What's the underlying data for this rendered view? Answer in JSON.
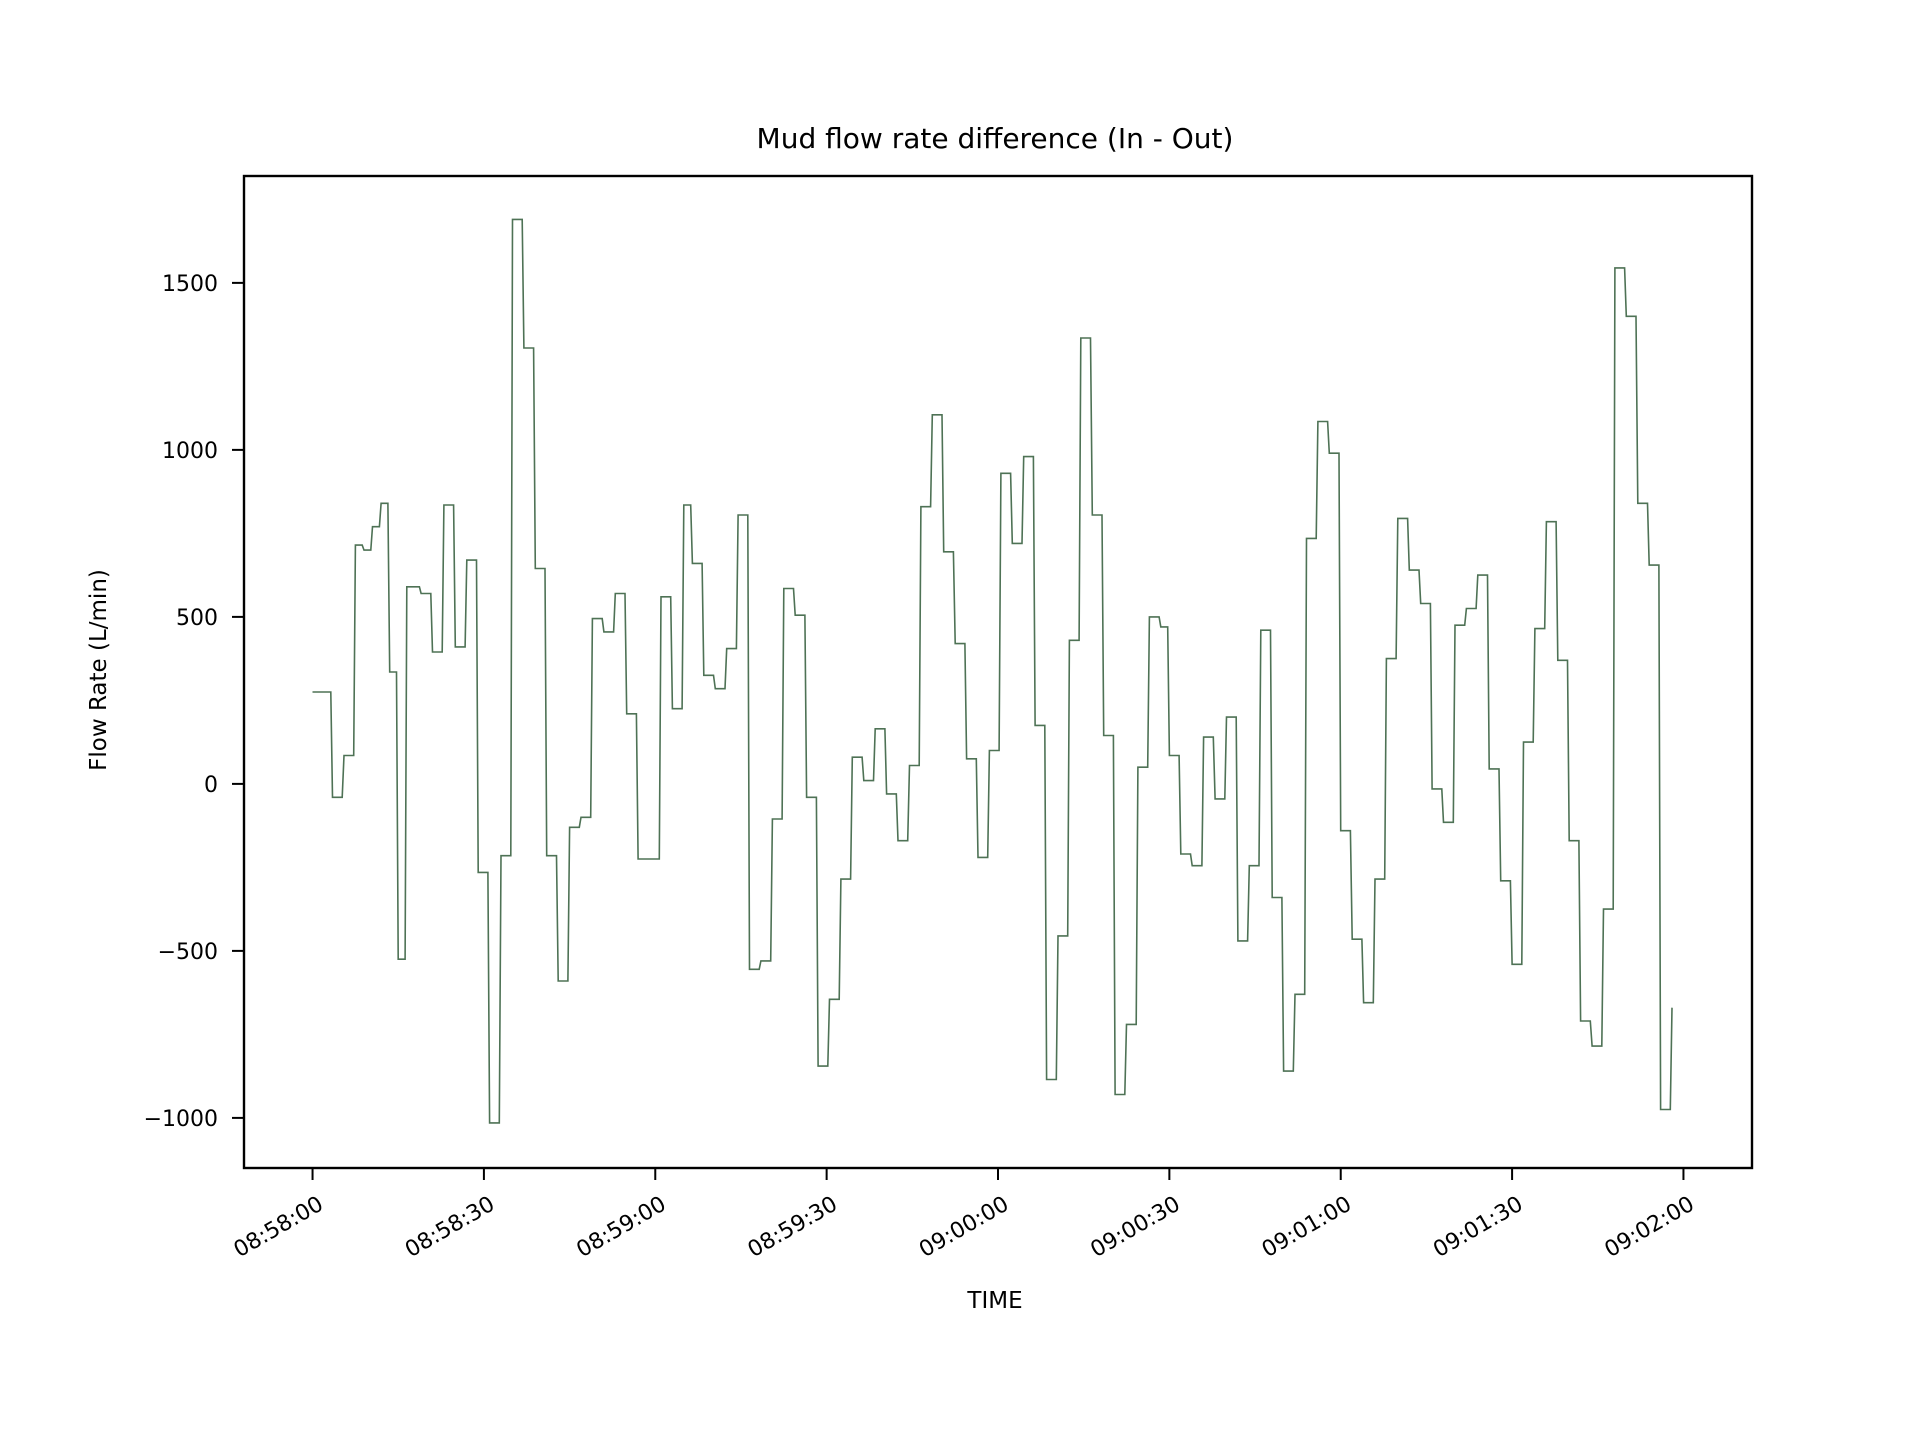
{
  "chart_data": {
    "type": "line",
    "title": "Mud flow rate difference (In - Out)",
    "xlabel": "TIME",
    "ylabel": "Flow Rate (L/min)",
    "x_ticks": [
      "08:58:00",
      "08:58:30",
      "08:59:00",
      "08:59:30",
      "09:00:00",
      "09:00:30",
      "09:01:00",
      "09:01:30",
      "09:02:00"
    ],
    "y_ticks": [
      -1000,
      -500,
      0,
      500,
      1000,
      1500
    ],
    "xlim": [
      "08:57:48",
      "09:02:12"
    ],
    "ylim": [
      -1150,
      1820
    ],
    "grid": false,
    "legend": "none",
    "line_color": "#4e7255",
    "series": [
      {
        "x": [
          "08:58:00",
          "08:58:02.5",
          "08:58:03.5",
          "08:58:05.5",
          "08:58:07.5",
          "08:58:09",
          "08:58:10.5",
          "08:58:12",
          "08:58:13.5",
          "08:58:15",
          "08:58:16.5",
          "08:58:19",
          "08:58:21",
          "08:58:23",
          "08:58:25",
          "08:58:27",
          "08:58:29",
          "08:58:31",
          "08:58:33",
          "08:58:35",
          "08:58:37",
          "08:58:39",
          "08:58:41",
          "08:58:43",
          "08:58:45",
          "08:58:47",
          "08:58:49",
          "08:58:51",
          "08:58:53",
          "08:58:55",
          "08:58:57",
          "08:59:01",
          "08:59:03",
          "08:59:05",
          "08:59:06.5",
          "08:59:08.5",
          "08:59:10.5",
          "08:59:12.5",
          "08:59:14.5",
          "08:59:16.5",
          "08:59:18.5",
          "08:59:20.5",
          "08:59:22.5",
          "08:59:24.5",
          "08:59:26.5",
          "08:59:28.5",
          "08:59:30.5",
          "08:59:32.5",
          "08:59:34.5",
          "08:59:36.5",
          "08:59:38.5",
          "08:59:40.5",
          "08:59:42.5",
          "08:59:44.5",
          "08:59:46.5",
          "08:59:48.5",
          "08:59:50.5",
          "08:59:52.5",
          "08:59:54.5",
          "08:59:56.5",
          "08:59:58.5",
          "09:00:00.5",
          "09:00:02.5",
          "09:00:04.5",
          "09:00:06.5",
          "09:00:08.5",
          "09:00:10.5",
          "09:00:12.5",
          "09:00:14.5",
          "09:00:16.5",
          "09:00:18.5",
          "09:00:20.5",
          "09:00:22.5",
          "09:00:24.5",
          "09:00:26.5",
          "09:00:28.5",
          "09:00:30",
          "09:00:32",
          "09:00:34",
          "09:00:36",
          "09:00:38",
          "09:00:40",
          "09:00:42",
          "09:00:44",
          "09:00:46",
          "09:00:48",
          "09:00:50",
          "09:00:52",
          "09:00:54",
          "09:00:56",
          "09:00:58",
          "09:01:00",
          "09:01:02",
          "09:01:04",
          "09:01:06",
          "09:01:08",
          "09:01:10",
          "09:01:12",
          "09:01:14",
          "09:01:16",
          "09:01:18",
          "09:01:20",
          "09:01:22",
          "09:01:24",
          "09:01:26",
          "09:01:28",
          "09:01:30",
          "09:01:32",
          "09:01:34",
          "09:01:36",
          "09:01:38",
          "09:01:40",
          "09:01:42",
          "09:01:44",
          "09:01:46",
          "09:01:48",
          "09:01:50",
          "09:01:52",
          "09:01:54",
          "09:01:56",
          "09:01:58"
        ],
        "y": [
          275,
          275,
          -40,
          85,
          715,
          700,
          770,
          840,
          335,
          -525,
          590,
          570,
          395,
          835,
          410,
          670,
          -265,
          -1015,
          -215,
          1690,
          1305,
          645,
          -215,
          -590,
          -130,
          -100,
          495,
          455,
          570,
          210,
          -225,
          560,
          225,
          835,
          660,
          325,
          285,
          405,
          805,
          -555,
          -530,
          -105,
          585,
          505,
          -40,
          -845,
          -645,
          -285,
          80,
          10,
          165,
          -30,
          -170,
          55,
          830,
          1105,
          695,
          420,
          75,
          -220,
          100,
          930,
          720,
          980,
          175,
          -885,
          -455,
          430,
          1335,
          805,
          145,
          -930,
          -720,
          50,
          500,
          470,
          85,
          -210,
          -245,
          140,
          -45,
          200,
          -470,
          -245,
          460,
          -340,
          -860,
          -630,
          735,
          1085,
          990,
          -140,
          -465,
          -655,
          -285,
          375,
          795,
          640,
          540,
          -15,
          -115,
          475,
          525,
          625,
          45,
          -290,
          -540,
          125,
          465,
          785,
          370,
          -170,
          -710,
          -785,
          -375,
          1545,
          1400,
          840,
          655,
          -975,
          -670
        ],
        "step_points": [
          0,
          1,
          2,
          3,
          4,
          5,
          6,
          7,
          8,
          9,
          10,
          11,
          12,
          13,
          14,
          15,
          16,
          17,
          18,
          19,
          20,
          21,
          22,
          23,
          24,
          25,
          26,
          27,
          28,
          29,
          30,
          31,
          32,
          33,
          34,
          35,
          36,
          37,
          38,
          39,
          40,
          41,
          42,
          43,
          44,
          45,
          46,
          47,
          48,
          49,
          50,
          51,
          52,
          53,
          54,
          55,
          56,
          57,
          58,
          59,
          60,
          61,
          62,
          63,
          64,
          65,
          66,
          67,
          68,
          69,
          70,
          71,
          72,
          73,
          74,
          75,
          76,
          77,
          78,
          79,
          80,
          81,
          82,
          83,
          84,
          85,
          86,
          87,
          88,
          89,
          90,
          91,
          92,
          93,
          94,
          95,
          96,
          97,
          98,
          99,
          100,
          101,
          102,
          103,
          104,
          105,
          106,
          107,
          108,
          109,
          110,
          111,
          112,
          113,
          114,
          115,
          116,
          117,
          118,
          119,
          120
        ]
      }
    ]
  }
}
